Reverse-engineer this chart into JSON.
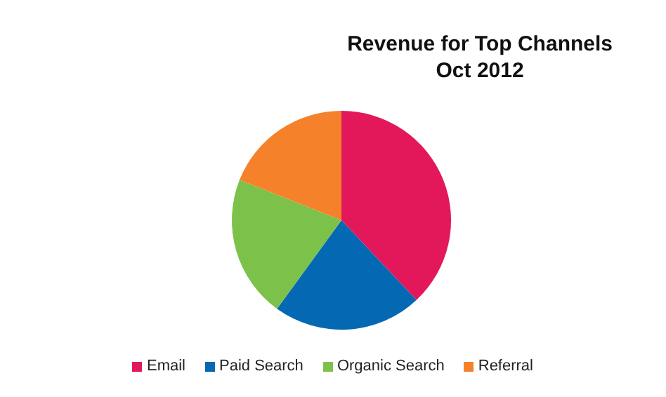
{
  "chart_data": {
    "type": "pie",
    "title": "Revenue for Top Channels\nOct 2012",
    "categories": [
      "Email",
      "Paid Search",
      "Organic Search",
      "Referral"
    ],
    "values": [
      38,
      22,
      21,
      19
    ],
    "colors": [
      "#e3185b",
      "#0568b3",
      "#7cc24a",
      "#f5822a"
    ],
    "legend": "bottom"
  }
}
